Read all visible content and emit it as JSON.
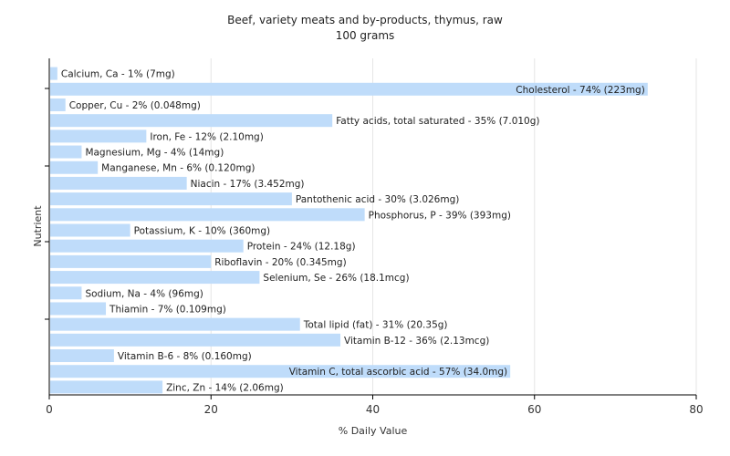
{
  "chart_data": {
    "type": "bar",
    "orientation": "horizontal",
    "title": "Beef, variety meats and by-products, thymus, raw",
    "subtitle": "100 grams",
    "xlabel": "% Daily Value",
    "ylabel": "Nutrient",
    "xlim": [
      0,
      80
    ],
    "xticks": [
      0,
      20,
      40,
      60,
      80
    ],
    "grid": true,
    "colors": {
      "bar": "#bfdcfa",
      "axis": "#000000",
      "grid": "#e6e6e6",
      "plot_bg": "#ffffff"
    },
    "categories": [
      "Calcium, Ca",
      "Cholesterol",
      "Copper, Cu",
      "Fatty acids, total saturated",
      "Iron, Fe",
      "Magnesium, Mg",
      "Manganese, Mn",
      "Niacin",
      "Pantothenic acid",
      "Phosphorus, P",
      "Potassium, K",
      "Protein",
      "Riboflavin",
      "Selenium, Se",
      "Sodium, Na",
      "Thiamin",
      "Total lipid (fat)",
      "Vitamin B-12",
      "Vitamin B-6",
      "Vitamin C, total ascorbic acid",
      "Zinc, Zn"
    ],
    "values": [
      1,
      74,
      2,
      35,
      12,
      4,
      6,
      17,
      30,
      39,
      10,
      24,
      20,
      26,
      4,
      7,
      31,
      36,
      8,
      57,
      14
    ],
    "labels": [
      "Calcium, Ca - 1% (7mg)",
      "Cholesterol - 74% (223mg)",
      "Copper, Cu - 2% (0.048mg)",
      "Fatty acids, total saturated - 35% (7.010g)",
      "Iron, Fe - 12% (2.10mg)",
      "Magnesium, Mg - 4% (14mg)",
      "Manganese, Mn - 6% (0.120mg)",
      "Niacin - 17% (3.452mg)",
      "Pantothenic acid - 30% (3.026mg)",
      "Phosphorus, P - 39% (393mg)",
      "Potassium, K - 10% (360mg)",
      "Protein - 24% (12.18g)",
      "Riboflavin - 20% (0.345mg)",
      "Selenium, Se - 26% (18.1mcg)",
      "Sodium, Na - 4% (96mg)",
      "Thiamin - 7% (0.109mg)",
      "Total lipid (fat) - 31% (20.35g)",
      "Vitamin B-12 - 36% (2.13mcg)",
      "Vitamin B-6 - 8% (0.160mg)",
      "Vitamin C, total ascorbic acid - 57% (34.0mg)",
      "Zinc, Zn - 14% (2.06mg)"
    ]
  }
}
